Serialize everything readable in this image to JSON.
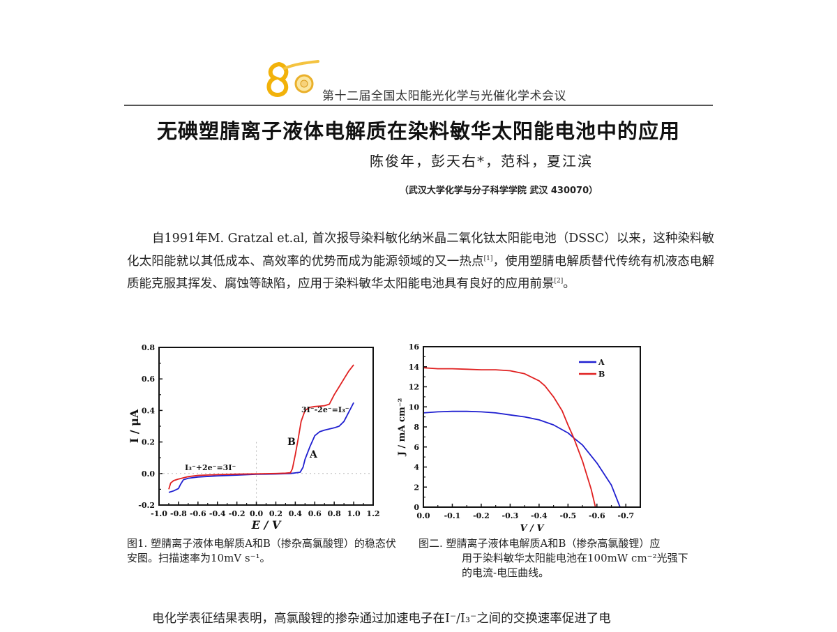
{
  "header": {
    "conference": "第十二届全国太阳能光化学与光催化学术会议",
    "logo": "80-anniversary-logo"
  },
  "paper": {
    "title": "无碘塑腈离子液体电解质在染料敏华太阳能电池中的应用",
    "authors": "陈俊年，彭天右*，范科，夏江滨",
    "affiliation": "（武汉大学化学与分子科学学院 武汉 430070）",
    "intro_paragraph": "自1991年M. Gratzal et.al, 首次报导染料敏化纳米晶二氧化钛太阳能电池（DSSC）以来，这种染料敏化太阳能就以其低成本、高效率的优势而成为能源领域的又一热点[1]，使用塑腈电解质替代传统有机液态电解质能克服其挥发、腐蚀等缺陷，应用于染料敏华太阳能电池具有良好的应用前景[2]。",
    "intro_parts": {
      "p1": "自1991年M. Gratzal et.al, 首次报导染料敏化纳米晶二氧化钛太阳能电池（DSSC）以来，这种染料敏化太阳能就以其低成本、高效率的优势而成为能源领域的又一热点",
      "ref1": "[1]",
      "p2": "，使用塑腈电解质替代传统有机液态电解质能克服其挥发、腐蚀等缺陷，应用于染料敏华太阳能电池具有良好的应用前景",
      "ref2": "[2]",
      "p3": "。"
    },
    "figure1_caption": "图1. 塑腈离子液体电解质A和B（掺杂高氯酸锂）的稳态伏安图。扫描速率为10mV s⁻¹。",
    "figure2_caption_line1": "图二.  塑腈离子液体电解质A和B（掺杂高氯酸锂）应",
    "figure2_caption_line2": "用于染料敏华太阳能电池在100mW cm⁻²光强下",
    "figure2_caption_line3": "的电流-电压曲线。",
    "next_paragraph": "电化学表征结果表明，高氯酸锂的掺杂通过加速电子在I⁻/I₃⁻之间的交换速率促进了电"
  },
  "chart_data": [
    {
      "type": "line",
      "title": "Steady-state voltammogram",
      "xlabel": "E / V",
      "ylabel": "I / μA",
      "xlim": [
        -1.0,
        1.2
      ],
      "ylim": [
        -0.2,
        0.8
      ],
      "xticks": [
        "-1.0",
        "-0.8",
        "-0.6",
        "-0.4",
        "-0.2",
        "0.0",
        "0.2",
        "0.4",
        "0.6",
        "0.8",
        "1.0",
        "1.2"
      ],
      "yticks": [
        "-0.2",
        "0.0",
        "0.2",
        "0.4",
        "0.6",
        "0.8"
      ],
      "grid": false,
      "annotations": [
        "I₃⁻+2e⁻=3I⁻",
        "3I⁻-2e⁻=I₃⁻",
        "A",
        "B"
      ],
      "series": [
        {
          "name": "A",
          "color": "#1f1fd0",
          "x": [
            -0.9,
            -0.85,
            -0.8,
            -0.78,
            -0.75,
            -0.7,
            -0.6,
            -0.4,
            -0.2,
            0.0,
            0.2,
            0.35,
            0.45,
            0.48,
            0.5,
            0.55,
            0.6,
            0.65,
            0.7,
            0.8,
            0.85,
            0.9,
            0.95,
            1.0
          ],
          "y": [
            -0.12,
            -0.11,
            -0.095,
            -0.07,
            -0.04,
            -0.03,
            -0.022,
            -0.015,
            -0.01,
            -0.005,
            -0.003,
            0.0,
            0.008,
            0.04,
            0.09,
            0.17,
            0.24,
            0.265,
            0.275,
            0.29,
            0.3,
            0.33,
            0.39,
            0.45
          ]
        },
        {
          "name": "B",
          "color": "#e02020",
          "x": [
            -0.9,
            -0.88,
            -0.85,
            -0.8,
            -0.7,
            -0.6,
            -0.4,
            -0.2,
            0.0,
            0.2,
            0.3,
            0.35,
            0.37,
            0.4,
            0.43,
            0.46,
            0.5,
            0.55,
            0.6,
            0.7,
            0.75,
            0.8,
            0.85,
            0.9,
            0.95,
            1.0
          ],
          "y": [
            -0.1,
            -0.06,
            -0.045,
            -0.035,
            -0.02,
            -0.012,
            -0.007,
            -0.004,
            -0.002,
            0.0,
            0.002,
            0.005,
            0.03,
            0.12,
            0.22,
            0.33,
            0.4,
            0.42,
            0.425,
            0.43,
            0.44,
            0.5,
            0.55,
            0.6,
            0.65,
            0.69
          ]
        }
      ]
    },
    {
      "type": "line",
      "title": "J-V curves",
      "xlabel": "V / V",
      "ylabel": "J / mA cm⁻²",
      "xlim": [
        0.0,
        -0.75
      ],
      "ylim": [
        0,
        16
      ],
      "xticks": [
        "0.0",
        "-0.1",
        "-0.2",
        "-0.3",
        "-0.4",
        "-0.5",
        "-0.6",
        "-0.7"
      ],
      "yticks": [
        "0",
        "2",
        "4",
        "6",
        "8",
        "10",
        "12",
        "14",
        "16"
      ],
      "grid": false,
      "legend_position": "upper right",
      "series": [
        {
          "name": "A",
          "color": "#1f1fd0",
          "x": [
            0.0,
            -0.05,
            -0.1,
            -0.15,
            -0.2,
            -0.25,
            -0.3,
            -0.35,
            -0.4,
            -0.45,
            -0.5,
            -0.52,
            -0.55,
            -0.6,
            -0.65,
            -0.68
          ],
          "y": [
            9.4,
            9.5,
            9.55,
            9.55,
            9.5,
            9.4,
            9.2,
            9.0,
            8.7,
            8.2,
            7.4,
            6.9,
            6.2,
            4.4,
            2.2,
            0.0
          ]
        },
        {
          "name": "B",
          "color": "#e02020",
          "x": [
            0.0,
            -0.05,
            -0.1,
            -0.15,
            -0.2,
            -0.25,
            -0.3,
            -0.35,
            -0.4,
            -0.42,
            -0.45,
            -0.48,
            -0.5,
            -0.52,
            -0.55,
            -0.58,
            -0.595
          ],
          "y": [
            13.9,
            13.8,
            13.8,
            13.75,
            13.7,
            13.7,
            13.6,
            13.3,
            12.6,
            12.1,
            11.0,
            9.6,
            8.2,
            6.9,
            4.6,
            1.8,
            0.0
          ]
        }
      ]
    }
  ]
}
